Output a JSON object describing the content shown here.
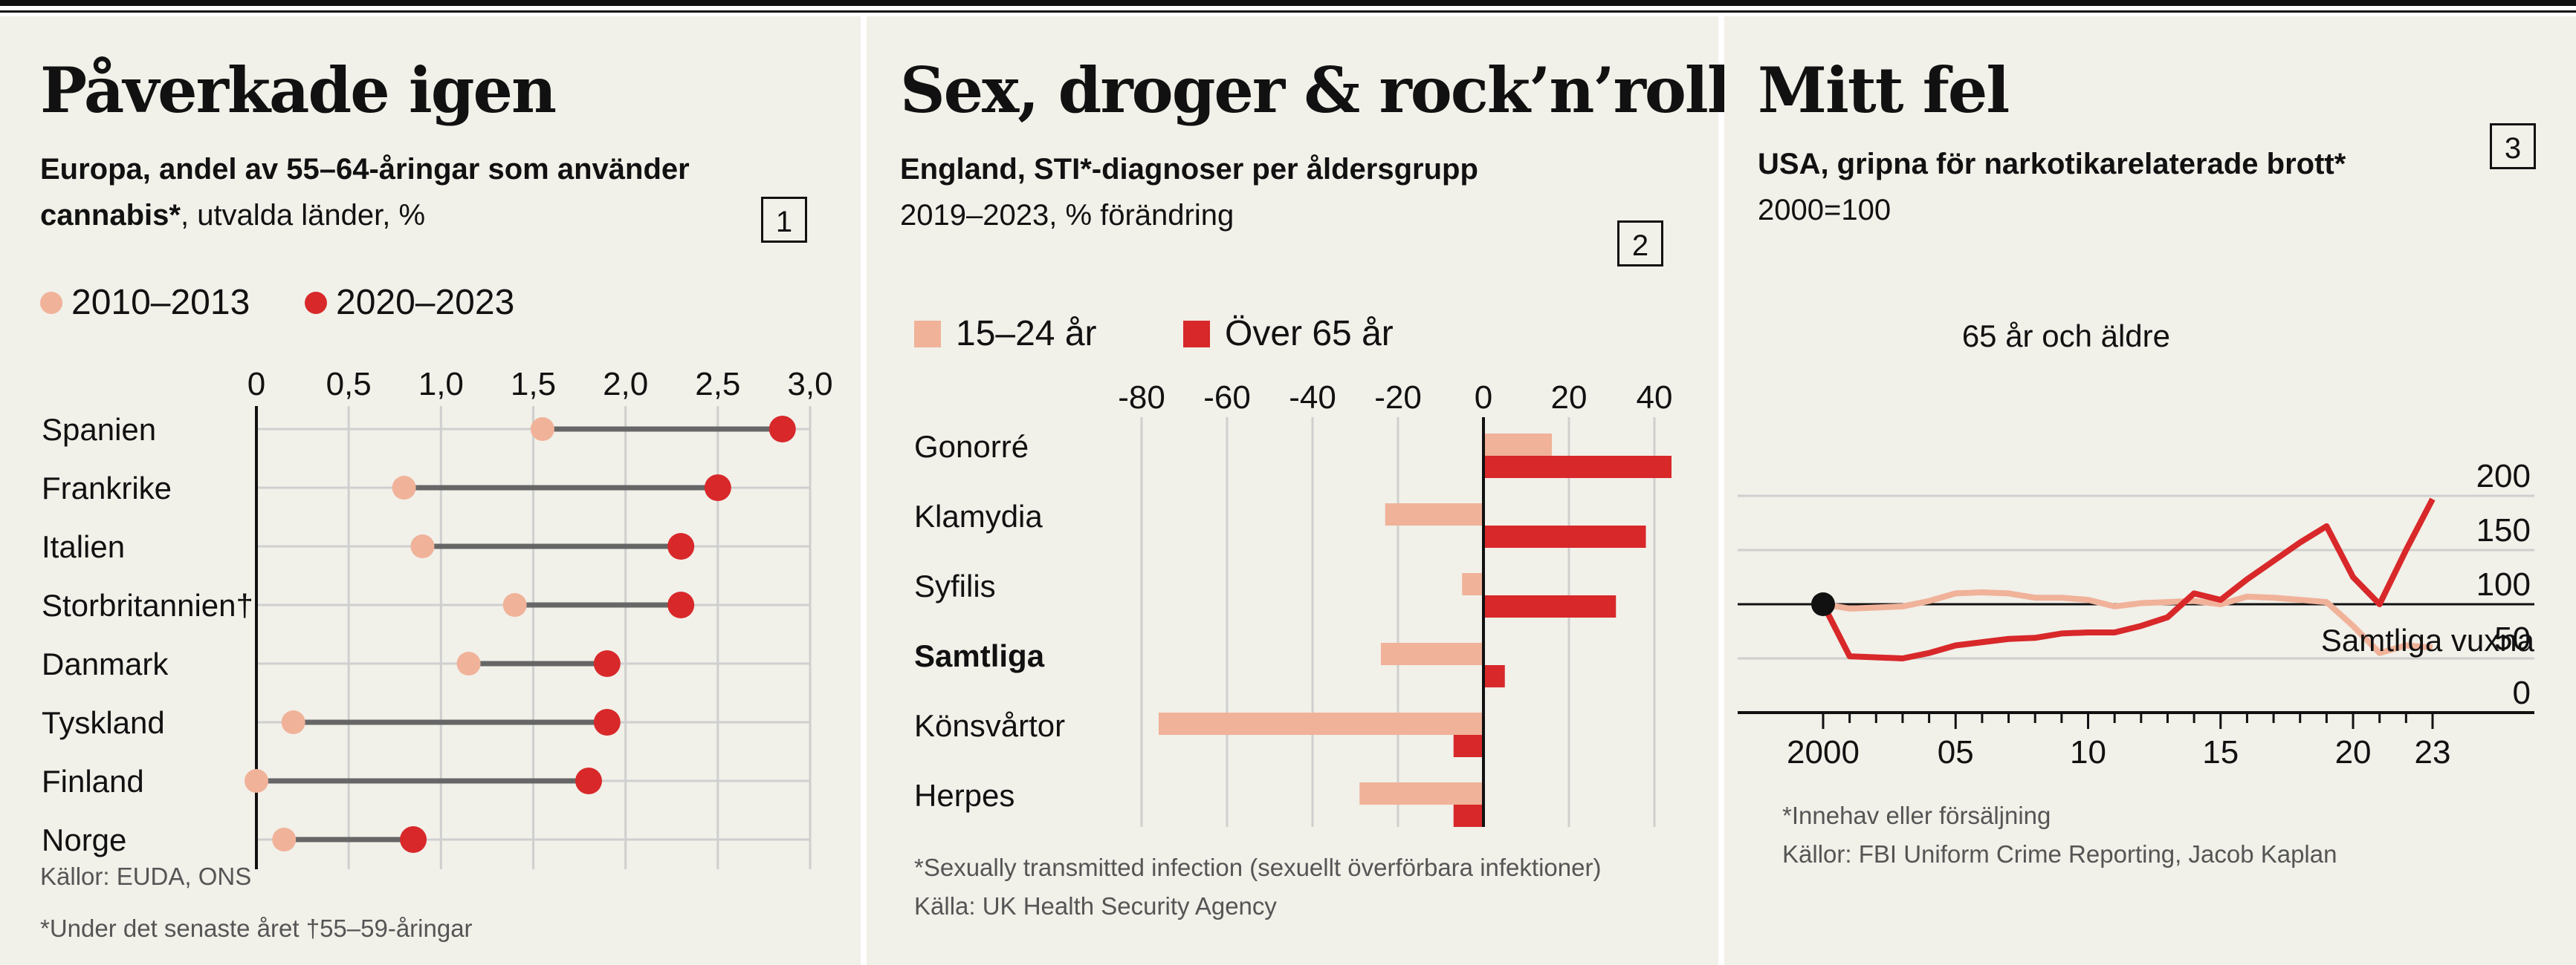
{
  "panels": [
    {
      "title": "Påverkade igen",
      "subtitle_bold_1": "Europa, andel av 55–64-åringar som använder",
      "subtitle_bold_2": "cannabis*",
      "subtitle_rest_2": ", utvalda länder, %",
      "number": "1",
      "legend": [
        "2010–2013",
        "2020–2023"
      ],
      "footnotes": [
        "Källor: EUDA, ONS",
        "*Under det senaste året  †55–59-åringar"
      ]
    },
    {
      "title": "Sex, droger & rock’n’roll",
      "subtitle_bold": "England, STI*-diagnoser per åldersgrupp",
      "subtitle_2": "2019–2023, % förändring",
      "number": "2",
      "legend": [
        "15–24 år",
        "Över 65 år"
      ],
      "footnotes": [
        "*Sexually transmitted infection (sexuellt överförbara infektioner)",
        "Källa: UK Health Security Agency"
      ]
    },
    {
      "title": "Mitt fel",
      "subtitle_bold": "USA, gripna för narkotikarelaterade brott*",
      "subtitle_2": "2000=100",
      "number": "3",
      "footnotes": [
        "*Innehav eller försäljning",
        "Källor: FBI Uniform Crime Reporting, Jacob Kaplan"
      ]
    }
  ],
  "colors": {
    "light": "#f0b299",
    "dark": "#d8282a",
    "grid": "#cfcfcf",
    "axis": "#111111",
    "connector": "#666666",
    "panel_bg": "#f1f0e9"
  },
  "chart_data": [
    {
      "type": "dumbbell",
      "categories": [
        "Spanien",
        "Frankrike",
        "Italien",
        "Storbritannien†",
        "Danmark",
        "Tyskland",
        "Finland",
        "Norge"
      ],
      "series": [
        {
          "name": "2010–2013",
          "values": [
            1.55,
            0.8,
            0.9,
            1.4,
            1.15,
            0.2,
            0.0,
            0.15
          ]
        },
        {
          "name": "2020–2023",
          "values": [
            2.85,
            2.5,
            2.3,
            2.3,
            1.9,
            1.9,
            1.8,
            0.85
          ]
        }
      ],
      "xlim": [
        0,
        3.0
      ],
      "xticks": [
        0,
        0.5,
        1.0,
        1.5,
        2.0,
        2.5,
        3.0
      ],
      "xtick_labels": [
        "0",
        "0,5",
        "1,0",
        "1,5",
        "2,0",
        "2,5",
        "3,0"
      ],
      "grid": true,
      "legend": "top-left"
    },
    {
      "type": "bar",
      "orientation": "horizontal",
      "categories": [
        "Gonorré",
        "Klamydia",
        "Syfilis",
        "Samtliga",
        "Könsvårtor",
        "Herpes"
      ],
      "bold_category": "Samtliga",
      "series": [
        {
          "name": "15–24 år",
          "values": [
            16,
            -23,
            -5,
            -24,
            -76,
            -29
          ]
        },
        {
          "name": "Över 65 år",
          "values": [
            44,
            38,
            31,
            5,
            -7,
            -7
          ]
        }
      ],
      "xlim": [
        -80,
        45
      ],
      "xticks": [
        -80,
        -60,
        -40,
        -20,
        0,
        20,
        40
      ],
      "xtick_labels": [
        "-80",
        "-60",
        "-40",
        "-20",
        "0",
        "20",
        "40"
      ],
      "grid": true,
      "legend": "top-left"
    },
    {
      "type": "line",
      "x": [
        2000,
        2001,
        2003,
        2004,
        2005,
        2006,
        2007,
        2008,
        2009,
        2010,
        2011,
        2012,
        2013,
        2014,
        2015,
        2016,
        2017,
        2018,
        2019,
        2020,
        2021,
        2022,
        2023
      ],
      "series": [
        {
          "name": "65 år och äldre",
          "values": [
            100,
            52,
            50,
            55,
            62,
            65,
            68,
            69,
            73,
            74,
            74,
            80,
            88,
            110,
            104,
            123,
            140,
            157,
            172,
            125,
            100,
            150,
            197
          ]
        },
        {
          "name": "Samtliga vuxna",
          "values": [
            100,
            96,
            98,
            103,
            110,
            111,
            110,
            106,
            106,
            104,
            98,
            101,
            102,
            103,
            100,
            107,
            106,
            104,
            102,
            80,
            55,
            62,
            60
          ]
        }
      ],
      "ylim": [
        0,
        200
      ],
      "yticks": [
        0,
        50,
        100,
        150,
        200
      ],
      "xticks": [
        2000,
        2005,
        2010,
        2015,
        2020,
        2023
      ],
      "xtick_labels": [
        "2000",
        "05",
        "10",
        "15",
        "20",
        "23"
      ],
      "baseline": 100,
      "grid": true
    }
  ]
}
